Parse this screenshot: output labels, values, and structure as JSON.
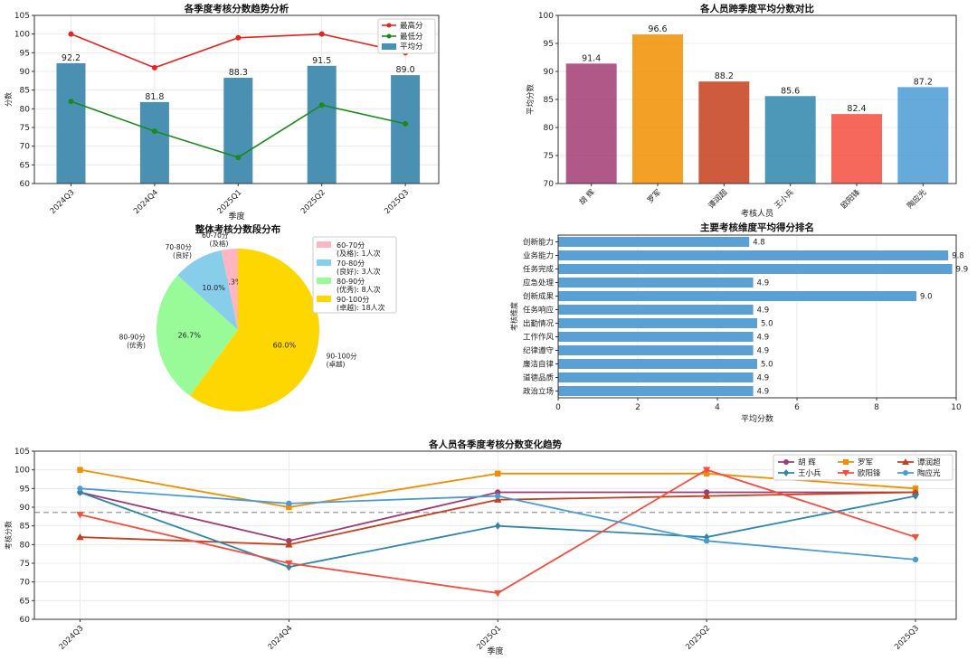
{
  "chart_data": [
    {
      "id": "trend",
      "type": "bar",
      "title": "各季度考核分数趋势分析",
      "xlabel": "季度",
      "ylabel": "分数",
      "categories": [
        "2024Q3",
        "2024Q4",
        "2025Q1",
        "2025Q2",
        "2025Q3"
      ],
      "ylim": [
        60,
        105
      ],
      "yticks": [
        60,
        65,
        70,
        75,
        80,
        85,
        90,
        95,
        100,
        105
      ],
      "bars": {
        "name": "平均分",
        "color": "#4a90b2",
        "values": [
          92.2,
          81.8,
          88.3,
          91.5,
          89.0
        ],
        "labels": [
          "92.2",
          "81.8",
          "88.3",
          "91.5",
          "89.0"
        ]
      },
      "lines": [
        {
          "name": "最高分",
          "color": "#e8231f",
          "values": [
            100,
            91,
            99,
            100,
            95
          ]
        },
        {
          "name": "最低分",
          "color": "#1a8a1a",
          "values": [
            82,
            74,
            67,
            81,
            76
          ]
        }
      ],
      "legend": [
        "最高分",
        "最低分",
        "平均分"
      ],
      "legend_position": "top-right"
    },
    {
      "id": "persons",
      "type": "bar",
      "title": "各人员跨季度平均分数对比",
      "xlabel": "考核人员",
      "ylabel": "平均分数",
      "categories": [
        "胡  辉",
        "罗军",
        "谭润超",
        "王小兵",
        "欧阳锋",
        "陶应光"
      ],
      "values": [
        91.4,
        96.6,
        88.2,
        85.6,
        82.4,
        87.2
      ],
      "labels": [
        "91.4",
        "96.6",
        "88.2",
        "85.6",
        "82.4",
        "87.2"
      ],
      "colors": [
        "#a23b72",
        "#f18f01",
        "#c73e1d",
        "#2e86ab",
        "#f44e3f",
        "#4a9bd4"
      ],
      "ylim": [
        70,
        100
      ],
      "yticks": [
        70,
        75,
        80,
        85,
        90,
        95,
        100
      ]
    },
    {
      "id": "pie",
      "type": "pie",
      "title": "整体考核分数段分布",
      "slices": [
        {
          "label": "60-70分\n(及格)",
          "legend": "60-70分\n(及格): 1人次",
          "pct": 3.3,
          "pct_label": "3.3%",
          "color": "#ffb6c1"
        },
        {
          "label": "70-80分\n(良好)",
          "legend": "70-80分\n(良好): 3人次",
          "pct": 10.0,
          "pct_label": "10.0%",
          "color": "#87ceeb"
        },
        {
          "label": "80-90分\n(优秀)",
          "legend": "80-90分\n(优秀): 8人次",
          "pct": 26.7,
          "pct_label": "26.7%",
          "color": "#98fb98"
        },
        {
          "label": "90-100分\n(卓越)",
          "legend": "90-100分\n(卓越): 18人次",
          "pct": 60.0,
          "pct_label": "60.0%",
          "color": "#ffd700"
        }
      ],
      "legend_position": "right"
    },
    {
      "id": "dims",
      "type": "bar",
      "orientation": "horizontal",
      "title": "主要考核维度平均得分排名",
      "xlabel": "平均分数",
      "ylabel": "考核维度",
      "categories": [
        "创新能力",
        "业务能力",
        "任务完成",
        "应急处理",
        "创新成果",
        "任务响应",
        "出勤情况",
        "工作作风",
        "纪律遵守",
        "廉洁自律",
        "道德品质",
        "政治立场"
      ],
      "values": [
        4.8,
        9.8,
        9.9,
        4.9,
        9.0,
        4.9,
        5.0,
        4.9,
        4.9,
        5.0,
        4.9,
        4.9
      ],
      "labels": [
        "4.8",
        "9.8",
        "9.9",
        "4.9",
        "9.0",
        "4.9",
        "5.0",
        "4.9",
        "4.9",
        "5.0",
        "4.9",
        "4.9"
      ],
      "color": "#5aa0d4",
      "xlim": [
        0,
        10
      ],
      "xticks": [
        0,
        2,
        4,
        6,
        8,
        10
      ]
    },
    {
      "id": "multi",
      "type": "line",
      "title": "各人员各季度考核分数变化趋势",
      "xlabel": "季度",
      "ylabel": "考核分数",
      "categories": [
        "2024Q3",
        "2024Q4",
        "2025Q1",
        "2025Q2",
        "2025Q3"
      ],
      "ylim": [
        60,
        105
      ],
      "yticks": [
        60,
        65,
        70,
        75,
        80,
        85,
        90,
        95,
        100,
        105
      ],
      "reference_line": 88.6,
      "series": [
        {
          "name": "胡  辉",
          "color": "#a23b72",
          "marker": "circle",
          "values": [
            94,
            81,
            94,
            94,
            94
          ]
        },
        {
          "name": "罗军",
          "color": "#f18f01",
          "marker": "square",
          "values": [
            100,
            90,
            99,
            99,
            95
          ]
        },
        {
          "name": "谭润超",
          "color": "#c73e1d",
          "marker": "triangle-up",
          "values": [
            82,
            80,
            92,
            93,
            94
          ]
        },
        {
          "name": "王小兵",
          "color": "#2e86ab",
          "marker": "diamond",
          "values": [
            94,
            74,
            85,
            82,
            93
          ]
        },
        {
          "name": "欧阳锋",
          "color": "#f44e3f",
          "marker": "triangle-down",
          "values": [
            88,
            75,
            67,
            100,
            82
          ]
        },
        {
          "name": "陶应光",
          "color": "#4a9bd4",
          "marker": "circle",
          "values": [
            95,
            91,
            93,
            81,
            76
          ]
        }
      ],
      "legend_position": "top-right"
    }
  ]
}
